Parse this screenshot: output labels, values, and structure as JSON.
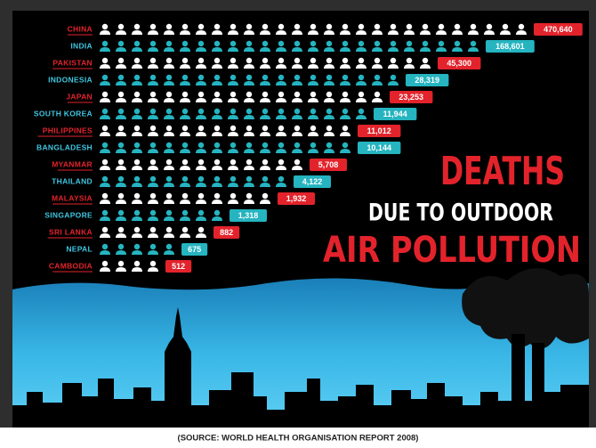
{
  "rows": [
    {
      "country": "CHINA",
      "deaths": "470,640"
    },
    {
      "country": "INDIA",
      "deaths": "168,601"
    },
    {
      "country": "PAKISTAN",
      "deaths": "45,300"
    },
    {
      "country": "INDONESIA",
      "deaths": "28,319"
    },
    {
      "country": "JAPAN",
      "deaths": "23,253"
    },
    {
      "country": "SOUTH KOREA",
      "deaths": "11,944"
    },
    {
      "country": "PHILIPPINES",
      "deaths": "11,012"
    },
    {
      "country": "BANGLADESH",
      "deaths": "10,144"
    },
    {
      "country": "MYANMAR",
      "deaths": "5,708"
    },
    {
      "country": "THAILAND",
      "deaths": "4,122"
    },
    {
      "country": "MALAYSIA",
      "deaths": "1,932"
    },
    {
      "country": "SINGAPORE",
      "deaths": "1,318"
    },
    {
      "country": "SRI LANKA",
      "deaths": "882"
    },
    {
      "country": "NEPAL",
      "deaths": "675"
    },
    {
      "country": "CAMBODIA",
      "deaths": "512"
    }
  ],
  "title": {
    "line1": "DEATHS",
    "line2": "DUE TO OUTDOOR",
    "line3": "AIR POLLUTION"
  },
  "source": "(SOURCE: WORLD HEALTH ORGANISATION REPORT 2008)"
}
